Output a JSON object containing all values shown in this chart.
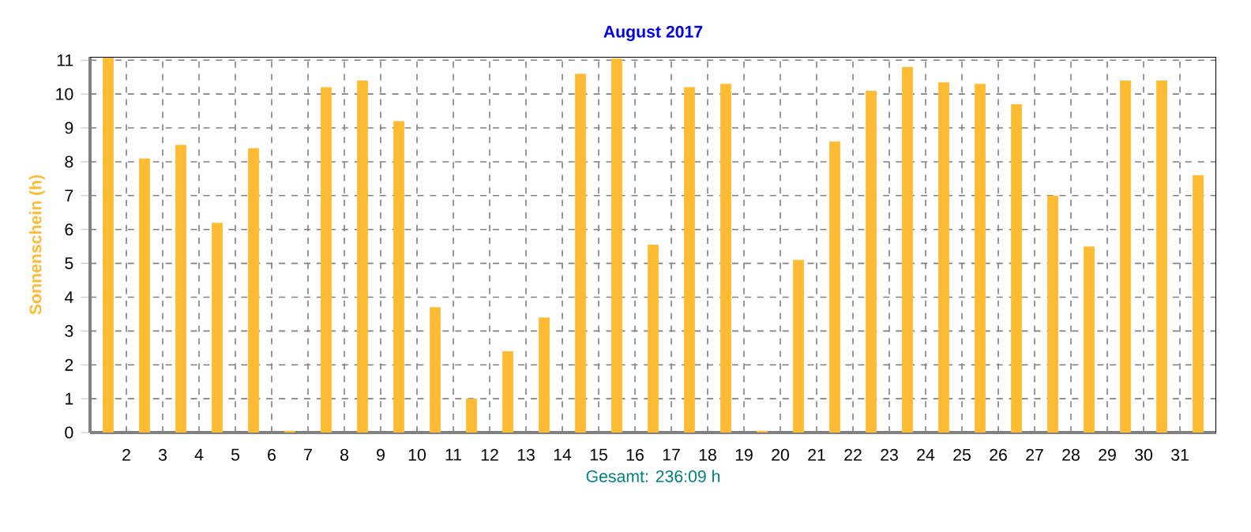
{
  "chart_data": {
    "type": "bar",
    "title": "August 2017",
    "ylabel": "Sonnenschein  (h)",
    "annotations": [
      "Gesamt: 236:09 h"
    ],
    "x": [
      1.5,
      2.5,
      3.5,
      4.5,
      5.5,
      6.5,
      7.5,
      8.5,
      9.5,
      10.5,
      11.5,
      12.5,
      13.5,
      14.5,
      15.5,
      16.5,
      17.5,
      18.5,
      19.5,
      20.5,
      21.5,
      22.5,
      23.5,
      24.5,
      25.5,
      26.5,
      27.5,
      28.5,
      29.5,
      30.5,
      31.5
    ],
    "values": [
      11.1,
      8.1,
      8.5,
      6.2,
      8.4,
      0.05,
      10.2,
      10.4,
      9.2,
      3.7,
      1.0,
      2.4,
      3.4,
      10.6,
      11.05,
      5.55,
      10.2,
      10.3,
      0.05,
      5.1,
      8.6,
      10.1,
      10.8,
      10.35,
      10.3,
      9.7,
      7.0,
      5.5,
      10.4,
      10.4,
      7.6
    ],
    "color": "#ffbb33",
    "xlim": [
      1,
      32
    ],
    "xticks": [
      2,
      3,
      4,
      5,
      6,
      7,
      8,
      9,
      10,
      11,
      12,
      13,
      14,
      15,
      16,
      17,
      18,
      19,
      20,
      21,
      22,
      23,
      24,
      25,
      26,
      27,
      28,
      29,
      30,
      31
    ],
    "ylim": [
      0,
      11.1
    ],
    "yticks": [
      0,
      1,
      2,
      3,
      4,
      5,
      6,
      7,
      8,
      9,
      10,
      11
    ],
    "grid": true
  }
}
